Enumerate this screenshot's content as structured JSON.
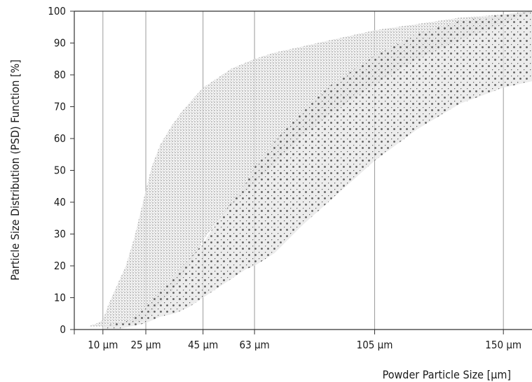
{
  "chart_data": {
    "type": "area",
    "xlabel": "Powder Particle Size [µm]",
    "ylabel": "Particle Size Distribution (PSD) Function [%]",
    "ylim": [
      0,
      100
    ],
    "yticks": [
      0,
      10,
      20,
      30,
      40,
      50,
      60,
      70,
      80,
      90,
      100
    ],
    "xlim": [
      0,
      160
    ],
    "xticks": [
      {
        "value": 10,
        "label": "10 µm"
      },
      {
        "value": 25,
        "label": "25 µm"
      },
      {
        "value": 45,
        "label": "45 µm"
      },
      {
        "value": 63,
        "label": "63 µm"
      },
      {
        "value": 105,
        "label": "105 µm"
      },
      {
        "value": 150,
        "label": "150 µm"
      }
    ],
    "grid": "vertical",
    "series": [
      {
        "fill": "#eeeeee",
        "dot_color": "#8a8a8a",
        "dot_pitch": 4,
        "dot_radius": 0.8,
        "upper": [
          [
            1,
            1
          ],
          [
            5,
            1
          ],
          [
            8,
            2
          ],
          [
            10,
            3
          ],
          [
            12,
            8
          ],
          [
            15,
            14
          ],
          [
            18,
            20
          ],
          [
            21,
            29
          ],
          [
            24,
            40
          ],
          [
            27,
            51
          ],
          [
            30,
            58
          ],
          [
            34,
            64
          ],
          [
            38,
            69
          ],
          [
            42,
            73
          ],
          [
            45,
            76
          ],
          [
            50,
            79
          ],
          [
            55,
            82
          ],
          [
            63,
            85
          ],
          [
            70,
            87
          ],
          [
            80,
            89
          ],
          [
            90,
            91
          ],
          [
            105,
            94
          ],
          [
            120,
            96
          ],
          [
            135,
            98
          ],
          [
            150,
            99
          ],
          [
            160,
            100
          ]
        ],
        "lower": [
          [
            1,
            1
          ],
          [
            5,
            1
          ],
          [
            8,
            1
          ],
          [
            10,
            1
          ],
          [
            12,
            1
          ],
          [
            15,
            1
          ],
          [
            18,
            2
          ],
          [
            21,
            2
          ],
          [
            24,
            3
          ],
          [
            27,
            5
          ],
          [
            30,
            8
          ],
          [
            34,
            12
          ],
          [
            38,
            17
          ],
          [
            42,
            23
          ],
          [
            45,
            28
          ],
          [
            50,
            34
          ],
          [
            55,
            39
          ],
          [
            63,
            46
          ],
          [
            70,
            52
          ],
          [
            80,
            61
          ],
          [
            90,
            68
          ],
          [
            105,
            77
          ],
          [
            120,
            85
          ],
          [
            135,
            91
          ],
          [
            150,
            96
          ],
          [
            160,
            100
          ]
        ]
      },
      {
        "fill": "#e6e6e6",
        "dot_color": "#5a5a5a",
        "dot_pitch": 9,
        "dot_radius": 1.4,
        "upper": [
          [
            10,
            1
          ],
          [
            15,
            2
          ],
          [
            20,
            3
          ],
          [
            25,
            7
          ],
          [
            30,
            12
          ],
          [
            35,
            17
          ],
          [
            40,
            22
          ],
          [
            45,
            27
          ],
          [
            50,
            34
          ],
          [
            55,
            40
          ],
          [
            60,
            46
          ],
          [
            63,
            51
          ],
          [
            70,
            59
          ],
          [
            80,
            69
          ],
          [
            90,
            77
          ],
          [
            105,
            86
          ],
          [
            120,
            93
          ],
          [
            135,
            97
          ],
          [
            150,
            99
          ],
          [
            160,
            100
          ]
        ],
        "lower": [
          [
            10,
            0
          ],
          [
            15,
            0
          ],
          [
            20,
            1
          ],
          [
            25,
            2
          ],
          [
            30,
            4
          ],
          [
            35,
            5
          ],
          [
            40,
            7
          ],
          [
            45,
            10
          ],
          [
            50,
            13
          ],
          [
            55,
            16
          ],
          [
            60,
            19
          ],
          [
            63,
            20
          ],
          [
            70,
            24
          ],
          [
            80,
            33
          ],
          [
            90,
            41
          ],
          [
            105,
            53
          ],
          [
            120,
            63
          ],
          [
            135,
            71
          ],
          [
            150,
            76
          ],
          [
            160,
            78
          ]
        ]
      }
    ]
  }
}
